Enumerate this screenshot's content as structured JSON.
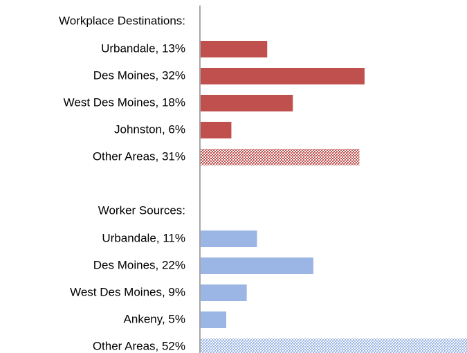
{
  "chart_data": {
    "type": "bar",
    "orientation": "horizontal",
    "xlim": [
      0,
      52
    ],
    "groups": [
      {
        "title": "Workplace Destinations:",
        "color": "#c0504d",
        "categories": [
          "Urbandale, 13%",
          "Des Moines, 32%",
          "West Des Moines, 18%",
          "Johnston, 6%",
          "Other Areas, 31%"
        ],
        "values": [
          13,
          32,
          18,
          6,
          31
        ],
        "styles": [
          "solid",
          "solid",
          "solid",
          "solid",
          "hatched"
        ]
      },
      {
        "title": "Worker Sources:",
        "color": "#9bb5e4",
        "categories": [
          "Urbandale, 11%",
          "Des Moines, 22%",
          "West Des Moines, 9%",
          "Ankeny, 5%",
          "Other Areas, 52%"
        ],
        "values": [
          11,
          22,
          9,
          5,
          52
        ],
        "styles": [
          "solid",
          "solid",
          "solid",
          "solid",
          "hatched"
        ]
      }
    ]
  }
}
